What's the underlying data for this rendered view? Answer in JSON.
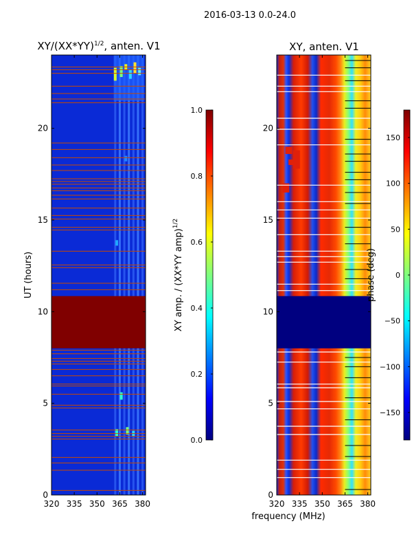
{
  "figure": {
    "suptitle": "2016-03-13 0.0-24.0",
    "xlabel": "frequency (MHz)"
  },
  "chart_data": [
    {
      "type": "heatmap",
      "name": "amplitude",
      "title_main": "XY/(XX*YY)",
      "title_sup": "1/2",
      "title_rest": ", anten. V1",
      "xlabel": "",
      "ylabel": "UT (hours)",
      "x_range": [
        320,
        382
      ],
      "y_range": [
        0,
        24
      ],
      "x_ticks": [
        320,
        335,
        350,
        365,
        380
      ],
      "y_ticks": [
        0,
        5,
        10,
        15,
        20
      ],
      "block_masked": [
        8.0,
        10.85
      ],
      "colorbar": {
        "label_main": "XY amp. / (XX*YY amp)",
        "label_sup": "1/2",
        "range": [
          0.0,
          1.0
        ],
        "ticks": [
          "0.0",
          "0.2",
          "0.4",
          "0.6",
          "0.8",
          "1.0"
        ],
        "tick_values": [
          0.0,
          0.2,
          0.4,
          0.6,
          0.8,
          1.0
        ]
      },
      "red_line_hours": [
        0.25,
        1.35,
        1.75,
        2.05,
        3.05,
        3.2,
        3.35,
        3.55,
        4.75,
        4.9,
        5.5,
        5.95,
        6.05,
        6.5,
        6.85,
        7.15,
        7.3,
        7.45,
        7.7,
        7.9,
        11.2,
        11.55,
        12.4,
        12.55,
        13.3,
        14.45,
        14.6,
        15.05,
        15.25,
        15.65,
        16.15,
        16.35,
        16.6,
        16.75,
        16.95,
        17.1,
        17.25,
        17.7,
        18.0,
        18.4,
        18.85,
        19.2,
        21.4,
        21.6,
        21.9,
        22.3,
        23.0,
        23.2,
        23.35
      ],
      "bright_columns_mhz": [
        362,
        365,
        368,
        371,
        374,
        377,
        380
      ]
    },
    {
      "type": "heatmap",
      "name": "phase",
      "title": "XY, anten. V1",
      "xlabel": "",
      "ylabel": "",
      "x_range": [
        320,
        382
      ],
      "y_range": [
        0,
        24
      ],
      "x_ticks": [
        320,
        335,
        350,
        365,
        380
      ],
      "y_ticks": [
        0,
        5,
        10,
        15,
        20
      ],
      "block_masked": [
        8.0,
        10.85
      ],
      "colorbar": {
        "label": "phase (deg)",
        "range": [
          -180,
          180
        ],
        "ticks": [
          "−150",
          "−100",
          "−50",
          "0",
          "50",
          "100",
          "150"
        ],
        "tick_values": [
          -150,
          -100,
          -50,
          0,
          50,
          100,
          150
        ]
      },
      "white_line_hours": [
        0.95,
        1.4,
        1.9,
        3.3,
        3.75,
        4.7,
        5.1,
        5.85,
        6.05,
        7.25,
        7.8,
        11.15,
        11.5,
        12.7,
        13.0,
        13.3,
        14.2,
        15.1,
        15.55,
        16.0,
        16.9,
        19.1,
        19.95,
        20.55,
        22.0,
        22.3,
        22.9
      ],
      "black_line_hours": [
        0.3,
        2.1,
        2.7,
        4.1,
        5.3,
        6.4,
        7.0,
        7.5,
        11.8,
        12.3,
        13.7,
        14.6,
        15.9,
        16.5,
        17.2,
        17.6,
        18.2,
        18.6,
        19.4,
        21.1,
        21.5,
        22.6,
        23.3,
        23.7
      ]
    }
  ],
  "colors": {
    "jet": [
      "#00007f",
      "#0000ff",
      "#007fff",
      "#00ffff",
      "#7fff7f",
      "#ffff00",
      "#ff7f00",
      "#ff0000",
      "#7f0000"
    ],
    "amp_background": "#0a2ad6",
    "masked_amp": "#800000",
    "masked_phase": "#000080",
    "red_line": "#c84a00",
    "white_line": "#ffffff",
    "black_line": "#000000"
  }
}
